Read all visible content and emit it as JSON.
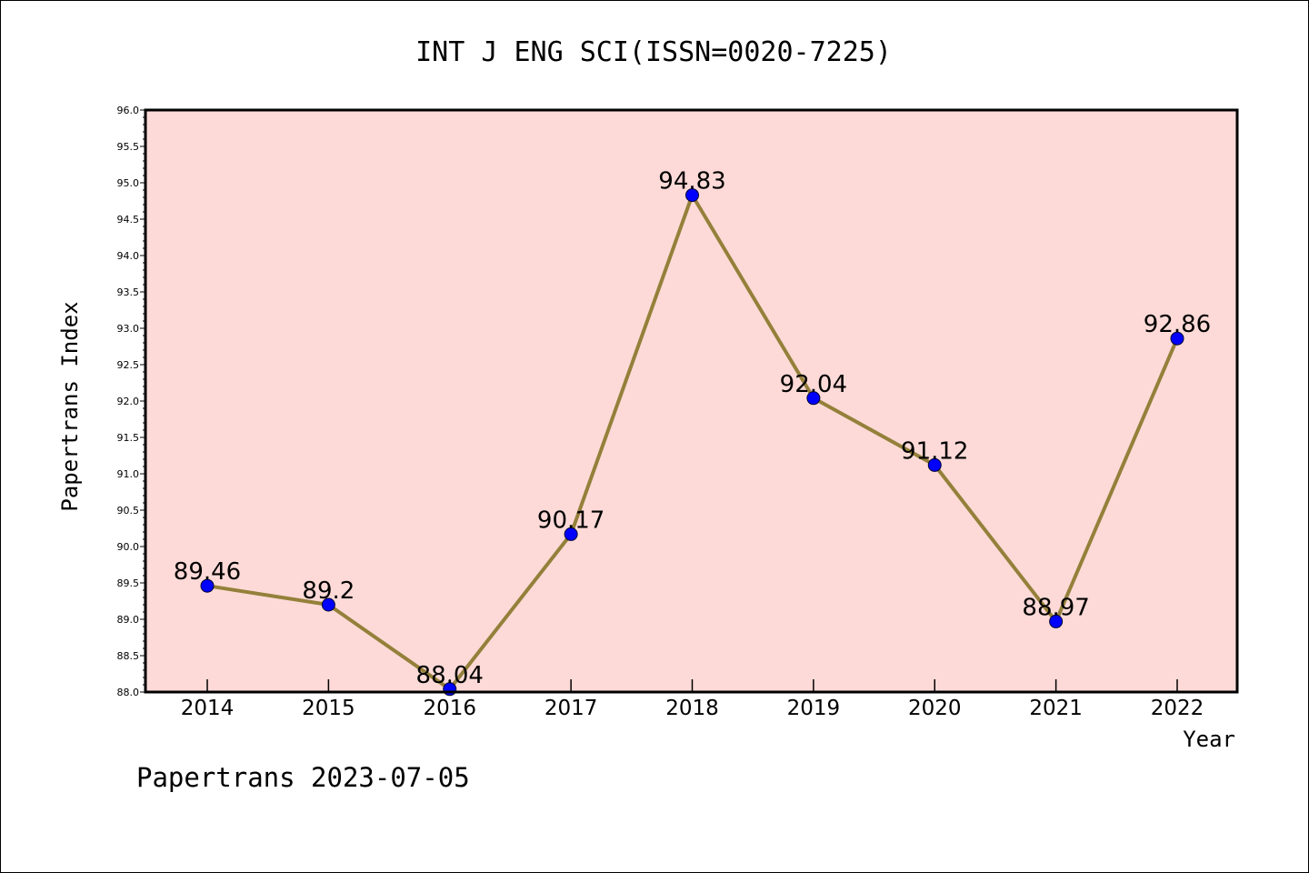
{
  "chart_data": {
    "type": "line",
    "title": "INT J ENG SCI(ISSN=0020-7225)",
    "xlabel": "Year",
    "ylabel": "Papertrans Index",
    "categories": [
      "2014",
      "2015",
      "2016",
      "2017",
      "2018",
      "2019",
      "2020",
      "2021",
      "2022"
    ],
    "series": [
      {
        "values": [
          89.46,
          89.2,
          88.04,
          90.17,
          94.83,
          92.04,
          91.12,
          88.97,
          92.86
        ],
        "data_labels": [
          "89.46",
          "89.2",
          "88.04",
          "90.17",
          "94.83",
          "92.04",
          "91.12",
          "88.97",
          "92.86"
        ]
      }
    ],
    "ylim": [
      88.0,
      96.0
    ],
    "yticks": [
      "88.0",
      "88.5",
      "89.0",
      "89.5",
      "90.0",
      "90.5",
      "91.0",
      "91.5",
      "92.0",
      "92.5",
      "93.0",
      "93.5",
      "94.0",
      "94.5",
      "95.0",
      "95.5",
      "96.0"
    ],
    "grid": false,
    "colors": {
      "plot_background": "#fddad7",
      "line": "#94803a",
      "marker": "#0000ff"
    }
  },
  "footer": {
    "text": "Papertrans 2023-07-05"
  }
}
